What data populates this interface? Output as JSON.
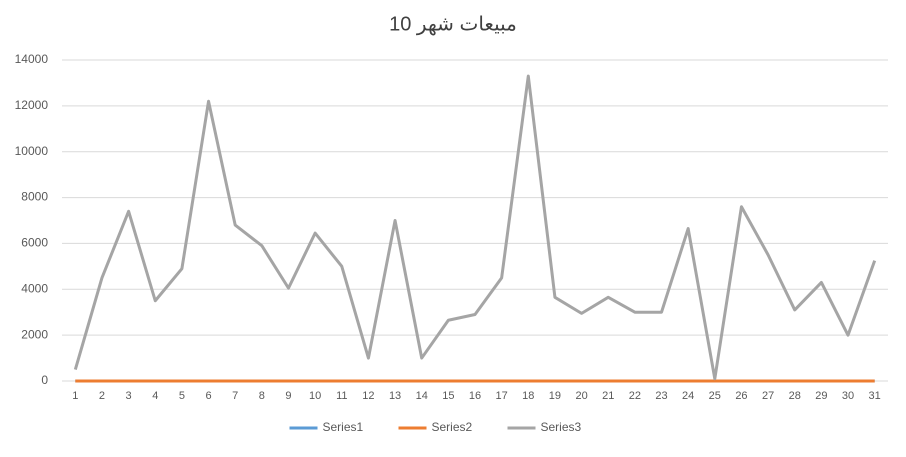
{
  "chart_data": {
    "type": "line",
    "title": "مبيعات شهر 10",
    "categories": [
      1,
      2,
      3,
      4,
      5,
      6,
      7,
      8,
      9,
      10,
      11,
      12,
      13,
      14,
      15,
      16,
      17,
      18,
      19,
      20,
      21,
      22,
      23,
      24,
      25,
      26,
      27,
      28,
      29,
      30,
      31
    ],
    "series": [
      {
        "name": "Series1",
        "color": "#5b9bd5",
        "values": [
          0,
          0,
          0,
          0,
          0,
          0,
          0,
          0,
          0,
          0,
          0,
          0,
          0,
          0,
          0,
          0,
          0,
          0,
          0,
          0,
          0,
          0,
          0,
          0,
          0,
          0,
          0,
          0,
          0,
          0,
          0
        ]
      },
      {
        "name": "Series2",
        "color": "#ed7d31",
        "values": [
          0,
          0,
          0,
          0,
          0,
          0,
          0,
          0,
          0,
          0,
          0,
          0,
          0,
          0,
          0,
          0,
          0,
          0,
          0,
          0,
          0,
          0,
          0,
          0,
          0,
          0,
          0,
          0,
          0,
          0,
          0
        ]
      },
      {
        "name": "Series3",
        "color": "#a5a5a5",
        "values": [
          500,
          4500,
          7400,
          3500,
          4900,
          12200,
          6800,
          5900,
          4050,
          6450,
          5000,
          1000,
          7000,
          1000,
          2650,
          2900,
          4500,
          13300,
          3650,
          2950,
          3650,
          3000,
          3000,
          6650,
          100,
          7600,
          5500,
          3100,
          4300,
          2000,
          5250
        ]
      }
    ],
    "ylim": [
      0,
      14000
    ],
    "yticks": [
      0,
      2000,
      4000,
      6000,
      8000,
      10000,
      12000,
      14000
    ],
    "grid": true,
    "legend": "bottom"
  }
}
